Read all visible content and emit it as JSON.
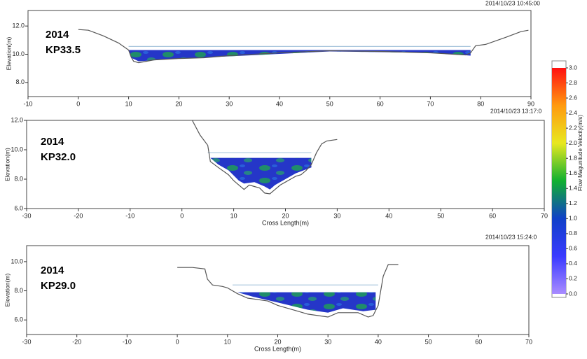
{
  "chart_data": [
    {
      "type": "line",
      "timestamp": "2014/10/23 10:45:00",
      "annotations": [
        "2014",
        "KP33.5"
      ],
      "ylabel": "Elevation(m)",
      "xlim": [
        -10,
        90
      ],
      "ylim": [
        7.0,
        13.1
      ],
      "xticks": [
        -10,
        0,
        10,
        20,
        30,
        40,
        50,
        60,
        70,
        80,
        90
      ],
      "yticks": [
        {
          "value": 8,
          "label": "8.0"
        },
        {
          "value": 10,
          "label": "10.0"
        },
        {
          "value": 12,
          "label": "12.0"
        }
      ],
      "series": [
        {
          "color": "#2536c8",
          "fill": true,
          "x": [
            10,
            78,
            78,
            70,
            50,
            30,
            20,
            12,
            10.5
          ],
          "values": [
            10.3,
            10.3,
            9.9,
            10.1,
            10.2,
            9.85,
            9.7,
            9.5,
            9.75
          ]
        },
        {
          "color": "#a9c6dd",
          "x": [
            10,
            78
          ],
          "values": [
            10.55,
            10.55
          ]
        },
        {
          "color": "#555555",
          "x": [
            0,
            2,
            5,
            8,
            10,
            10.5,
            11,
            12,
            15,
            20,
            25,
            30,
            40,
            50,
            60,
            70,
            77,
            78,
            79,
            81,
            85,
            88,
            89.5
          ],
          "values": [
            11.75,
            11.7,
            11.3,
            10.8,
            10.3,
            9.8,
            9.5,
            9.4,
            9.6,
            9.7,
            9.75,
            9.9,
            10.1,
            10.25,
            10.2,
            10.1,
            9.95,
            10.1,
            10.6,
            10.7,
            11.2,
            11.6,
            11.7
          ]
        }
      ]
    },
    {
      "type": "line",
      "timestamp": "2014/10/23 13:17:0",
      "annotations": [
        "2014",
        "KP32.0"
      ],
      "ylabel": "Elevation(m)",
      "xlabel": "Cross Length(m)",
      "xlim": [
        -30,
        70
      ],
      "ylim": [
        6.0,
        12.0
      ],
      "xticks": [
        -30,
        -20,
        -10,
        0,
        10,
        20,
        30,
        40,
        50,
        60,
        70
      ],
      "yticks": [
        {
          "value": 6,
          "label": "6.0"
        },
        {
          "value": 8,
          "label": "8.0"
        },
        {
          "value": 10,
          "label": "10.0"
        },
        {
          "value": 12,
          "label": "12.0"
        }
      ],
      "series": [
        {
          "color": "#2536c8",
          "fill": true,
          "x": [
            5.5,
            25,
            25,
            22,
            20,
            18,
            17,
            16,
            14,
            12,
            11,
            9,
            7
          ],
          "values": [
            9.45,
            9.45,
            8.8,
            8.4,
            8.0,
            7.6,
            7.3,
            7.5,
            7.8,
            7.7,
            7.9,
            8.6,
            9.0
          ]
        },
        {
          "color": "#a9c6dd",
          "x": [
            5,
            25
          ],
          "values": [
            9.8,
            9.8
          ]
        },
        {
          "color": "#555555",
          "x": [
            2,
            3.5,
            5,
            5.5,
            7,
            9,
            10,
            11,
            12,
            13,
            14,
            15,
            16,
            17,
            18,
            19,
            20,
            21,
            22,
            23,
            24,
            25,
            26,
            27,
            28,
            30
          ],
          "values": [
            12,
            11,
            10.3,
            9.2,
            8.8,
            8.3,
            7.9,
            7.6,
            7.3,
            7.6,
            7.5,
            7.4,
            7.05,
            7.0,
            7.3,
            7.6,
            7.8,
            8.0,
            8.2,
            8.3,
            8.6,
            9.0,
            9.8,
            10.4,
            10.6,
            10.7
          ]
        }
      ]
    },
    {
      "type": "line",
      "timestamp": "2014/10/23 15:24:0",
      "annotations": [
        "2014",
        "KP29.0"
      ],
      "ylabel": "Elevation(m)",
      "xlabel": "Cross Length(m)",
      "xlim": [
        -30,
        70
      ],
      "ylim": [
        5.0,
        11.1
      ],
      "xticks": [
        -30,
        -20,
        -10,
        0,
        10,
        20,
        30,
        40,
        50,
        60,
        70
      ],
      "yticks": [
        {
          "value": 6,
          "label": "6.0"
        },
        {
          "value": 8,
          "label": "8.0"
        },
        {
          "value": 10,
          "label": "10.0"
        }
      ],
      "series": [
        {
          "color": "#2536c8",
          "fill": true,
          "x": [
            12,
            39.5,
            39.5,
            37,
            33,
            30,
            26,
            20,
            15
          ],
          "values": [
            7.9,
            7.9,
            6.7,
            6.6,
            6.8,
            6.5,
            6.7,
            7.2,
            7.6
          ]
        },
        {
          "color": "#a9c6dd",
          "x": [
            11,
            40
          ],
          "values": [
            8.4,
            8.4
          ]
        },
        {
          "color": "#555555",
          "x": [
            0,
            3,
            5.5,
            6,
            7,
            9,
            10,
            12,
            14,
            18,
            20,
            24,
            26,
            30,
            32,
            36,
            38,
            39,
            40,
            41,
            42,
            44
          ],
          "values": [
            9.6,
            9.6,
            9.5,
            8.8,
            8.4,
            8.3,
            8.2,
            7.8,
            7.5,
            7.3,
            7.0,
            6.6,
            6.4,
            6.2,
            6.5,
            6.5,
            6.2,
            6.3,
            7.0,
            9.0,
            9.8,
            9.8
          ]
        }
      ]
    },
    {
      "type": "colorbar",
      "label": "Flow Magunitude Velocity(m/s)",
      "ylim": [
        0,
        3
      ],
      "yticks": [
        {
          "value": 0,
          "label": "0.0"
        },
        0.2,
        0.4,
        0.6,
        0.8,
        {
          "value": 1,
          "label": "1.0"
        },
        1.2,
        1.4,
        1.6,
        1.8,
        {
          "value": 2,
          "label": "2.0"
        },
        2.2,
        2.4,
        2.6,
        2.8,
        {
          "value": 3,
          "label": "3.0"
        }
      ],
      "colors": [
        "#a98cff",
        "#3a3aff",
        "#1040c8",
        "#10b030",
        "#e8e820",
        "#ff9a10",
        "#ff1010"
      ]
    }
  ]
}
